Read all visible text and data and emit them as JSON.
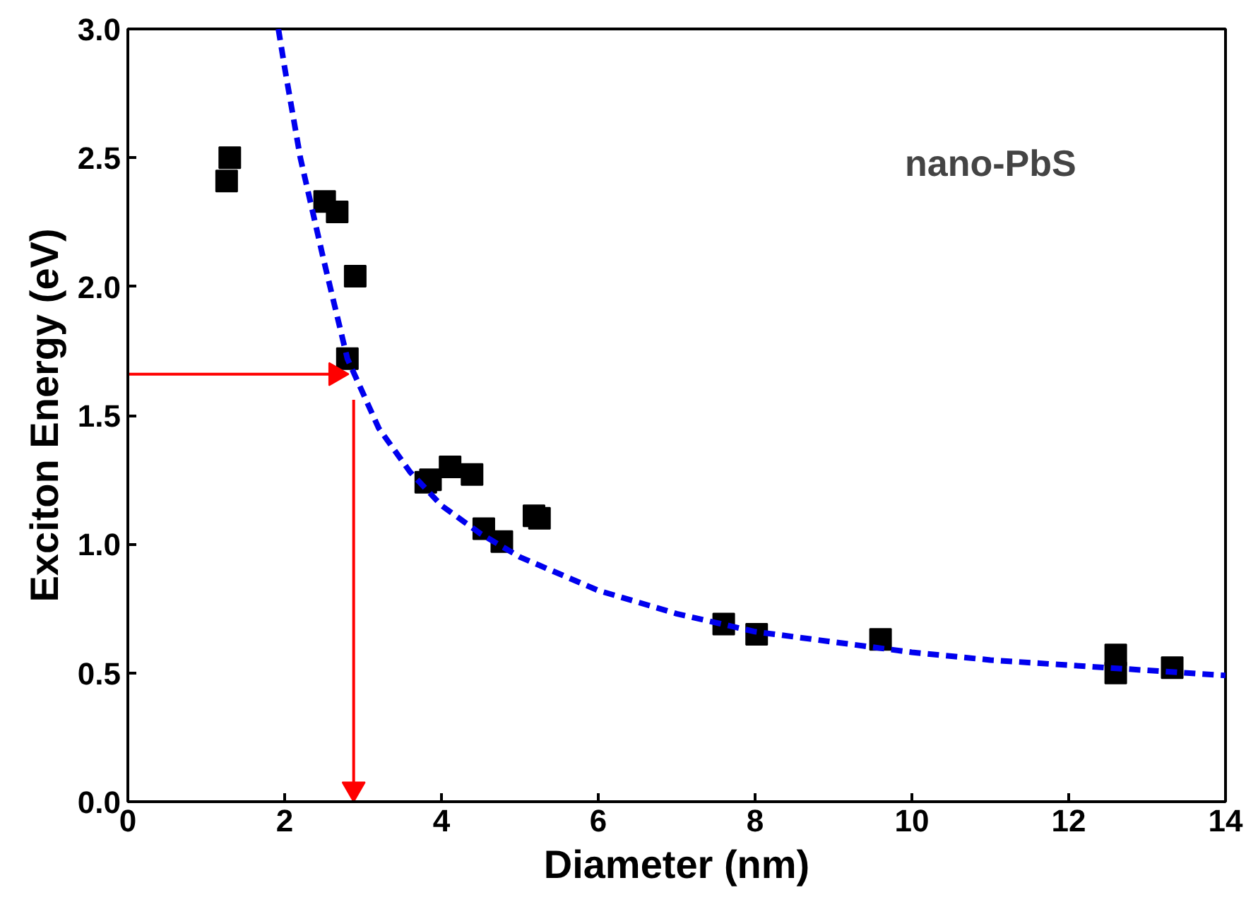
{
  "chart_data": {
    "type": "scatter",
    "xlabel": "Diameter (nm)",
    "ylabel": "Exciton Energy (eV)",
    "annotations": [
      "nano-PbS"
    ],
    "xlim": [
      0,
      14
    ],
    "ylim": [
      0,
      3.0
    ],
    "xticks": [
      0,
      2,
      4,
      6,
      8,
      10,
      12,
      14
    ],
    "yticks": [
      {
        "value": 0,
        "label": "0.0"
      },
      {
        "value": 0.5,
        "label": "0.5"
      },
      {
        "value": 1,
        "label": "1.0"
      },
      {
        "value": 1.5,
        "label": "1.5"
      },
      {
        "value": 2,
        "label": "2.0"
      },
      {
        "value": 2.5,
        "label": "2.5"
      },
      {
        "value": 3,
        "label": "3.0"
      }
    ],
    "grid": false,
    "series": [
      {
        "marker": "square",
        "color": "#000000",
        "x": [
          1.3,
          1.26,
          2.51,
          2.67,
          2.9,
          2.8,
          3.8,
          3.86,
          4.11,
          4.39,
          4.54,
          4.77,
          5.18,
          5.25,
          7.6,
          8.02,
          9.6,
          12.6,
          12.6,
          13.32
        ],
        "values": [
          2.5,
          2.41,
          2.33,
          2.29,
          2.04,
          1.72,
          1.24,
          1.25,
          1.3,
          1.27,
          1.06,
          1.01,
          1.11,
          1.1,
          0.69,
          0.65,
          0.63,
          0.57,
          0.5,
          0.52
        ]
      },
      {
        "type": "line",
        "line_style": "dashed",
        "marker": "none",
        "color": "#0000ee",
        "x": [
          1.92,
          2.0,
          2.2,
          2.5,
          2.8,
          3.2,
          3.6,
          4.0,
          4.5,
          5.0,
          6.0,
          7.0,
          8.0,
          9.0,
          10.0,
          11.0,
          12.0,
          13.0,
          14.0
        ],
        "values": [
          3.0,
          2.85,
          2.5,
          2.1,
          1.72,
          1.45,
          1.28,
          1.15,
          1.04,
          0.95,
          0.82,
          0.73,
          0.66,
          0.62,
          0.58,
          0.55,
          0.53,
          0.51,
          0.49
        ]
      },
      {
        "type": "line",
        "line_style": "solid",
        "color": "#ff0000",
        "x": [
          0,
          2.65
        ],
        "values": [
          1.66,
          1.66
        ]
      },
      {
        "type": "line",
        "line_style": "solid",
        "color": "#ff0000",
        "x": [
          2.88,
          2.88
        ],
        "values": [
          1.56,
          0.05
        ]
      }
    ]
  }
}
